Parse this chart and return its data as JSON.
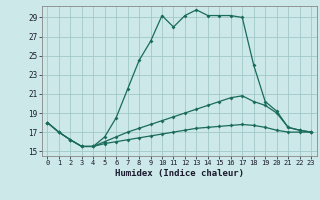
{
  "title": "",
  "xlabel": "Humidex (Indice chaleur)",
  "background_color": "#cce8e8",
  "grid_color": "#a0c8c8",
  "line_color": "#1a6b5a",
  "xlim": [
    -0.5,
    23.5
  ],
  "ylim": [
    14.5,
    30.2
  ],
  "xticks": [
    0,
    1,
    2,
    3,
    4,
    5,
    6,
    7,
    8,
    9,
    10,
    11,
    12,
    13,
    14,
    15,
    16,
    17,
    18,
    19,
    20,
    21,
    22,
    23
  ],
  "yticks": [
    15,
    17,
    19,
    21,
    23,
    25,
    27,
    29
  ],
  "line1_y": [
    18.0,
    17.0,
    16.2,
    15.5,
    15.5,
    16.5,
    18.5,
    21.5,
    24.5,
    26.5,
    29.2,
    28.0,
    29.2,
    29.8,
    29.2,
    29.2,
    29.2,
    29.0,
    24.0,
    20.2,
    19.2,
    17.5,
    17.2,
    17.0
  ],
  "line2_y": [
    18.0,
    17.0,
    16.2,
    15.5,
    15.5,
    16.0,
    16.5,
    17.0,
    17.4,
    17.8,
    18.2,
    18.6,
    19.0,
    19.4,
    19.8,
    20.2,
    20.6,
    20.8,
    20.2,
    19.8,
    19.0,
    17.5,
    17.2,
    17.0
  ],
  "line3_y": [
    18.0,
    17.0,
    16.2,
    15.5,
    15.5,
    15.8,
    16.0,
    16.2,
    16.4,
    16.6,
    16.8,
    17.0,
    17.2,
    17.4,
    17.5,
    17.6,
    17.7,
    17.8,
    17.7,
    17.5,
    17.2,
    17.0,
    17.0,
    17.0
  ]
}
